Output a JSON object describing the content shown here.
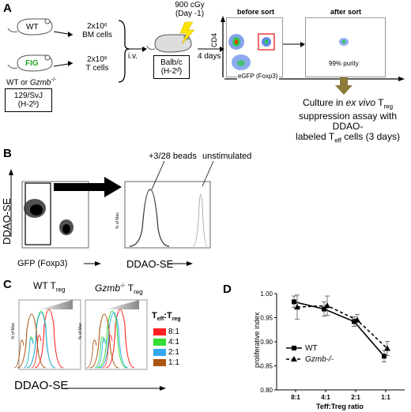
{
  "panels": {
    "A": "A",
    "B": "B",
    "C": "C",
    "D": "D"
  },
  "panelA": {
    "wt_label": "WT",
    "fig_label": "FIG",
    "bm_cells_line1": "2x10⁶",
    "bm_cells_line2": "BM cells",
    "t_cells_line1": "2x10⁶",
    "t_cells_line2": "T cells",
    "wt_or": "WT or ",
    "gzmb": "Gzmb",
    "gzmb_sup": "-/-",
    "strain_line1": "129/SvJ",
    "strain_line2": "(H-2ᵇ)",
    "iv": "i.v.",
    "dose": "900 cGy",
    "dose_day": "(Day -1)",
    "host_line1": "Balb/c",
    "host_line2": "(H-2ᵈ)",
    "days": "4 days",
    "before_sort": "before sort",
    "after_sort": "after sort",
    "cd4": "CD4",
    "egfp": "eGFP (Foxp3)",
    "purity": "99% purity",
    "culture_line1_pre": "Culture in ",
    "culture_line1_em": "ex vivo",
    "culture_line1_post": " T",
    "culture_line1_sub": "reg",
    "culture_line2": "suppression assay with DDAO-",
    "culture_line3_pre": "labeled T",
    "culture_line3_sub": "eff",
    "culture_line3_post": " cells (3 days)"
  },
  "panelB": {
    "beads": "+3/28 beads",
    "unstim": "unstimulated",
    "ylabel": "DDAO-SE",
    "xlabel": "GFP (Foxp3)",
    "hist_xlabel": "DDAO-SE",
    "hist_ylabel": "% of Max"
  },
  "panelC": {
    "wt_title": "WT T",
    "wt_sub": "reg",
    "gz_title": "Gzmb",
    "gz_sup": "-/-",
    "gz_post": " T",
    "gz_sub": "reg",
    "legend_title": "T",
    "legend_sub1": "eff",
    "legend_colon": ":T",
    "legend_sub2": "reg",
    "legend": [
      {
        "label": "8:1",
        "color": "#ff2020"
      },
      {
        "label": "4:1",
        "color": "#33dd33"
      },
      {
        "label": "2:1",
        "color": "#33aaee"
      },
      {
        "label": "1:1",
        "color": "#aa5511"
      }
    ],
    "xlabel": "DDAO-SE",
    "ylabel": "% of Max"
  },
  "chart_data": {
    "type": "line",
    "categories": [
      "8:1",
      "4:1",
      "2:1",
      "1:1"
    ],
    "series": [
      {
        "name": "WT",
        "values": [
          0.983,
          0.968,
          0.942,
          0.87
        ],
        "errors": [
          0.012,
          0.015,
          0.01,
          0.012
        ],
        "color": "#000000",
        "dash": false,
        "marker": "square"
      },
      {
        "name": "Gzmb-/-",
        "values": [
          0.972,
          0.975,
          0.945,
          0.886
        ],
        "errors": [
          0.025,
          0.02,
          0.012,
          0.015
        ],
        "color": "#000000",
        "dash": true,
        "marker": "triangle"
      }
    ],
    "xlabel": "Teff:Treg ratio",
    "ylabel": "proliferative index",
    "ylim": [
      0.8,
      1.0
    ],
    "yticks": [
      "0.80",
      "0.85",
      "0.90",
      "0.95",
      "1.00"
    ],
    "legend_position": "lower-left"
  }
}
